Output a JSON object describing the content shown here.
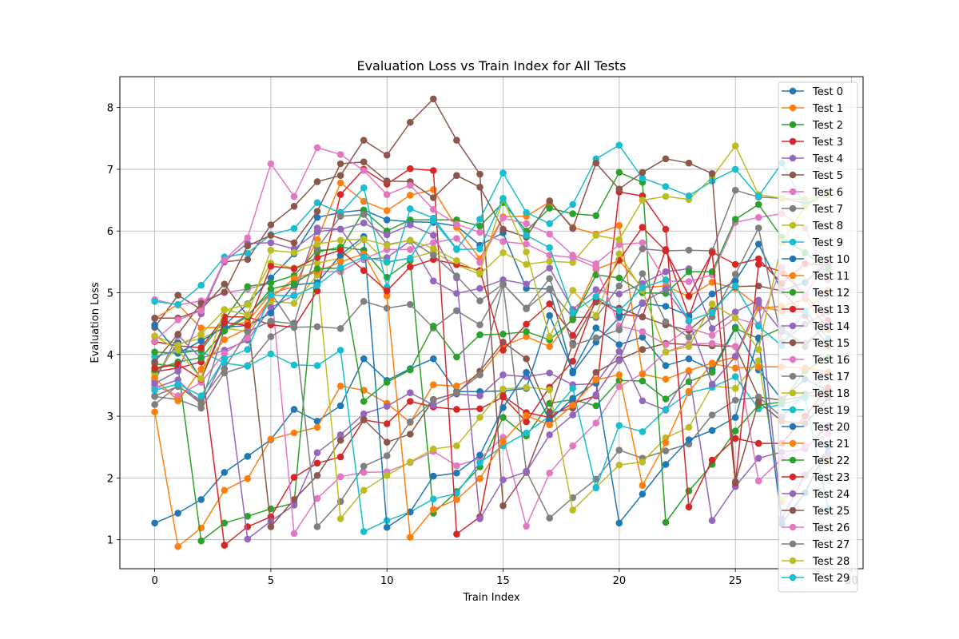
{
  "chart_data": {
    "type": "line",
    "title": "Evaluation Loss vs Train Index for All Tests",
    "xlabel": "Train Index",
    "ylabel": "Evaluation Loss",
    "xlim": [
      -1.5,
      30.5
    ],
    "ylim": [
      0.53,
      8.5
    ],
    "xticks": [
      0,
      5,
      10,
      15,
      20,
      25,
      30
    ],
    "yticks": [
      1,
      2,
      3,
      4,
      5,
      6,
      7,
      8
    ],
    "grid": true,
    "legend": "upper-right",
    "marker": "circle",
    "series": [
      {
        "name": "Test 0",
        "color": "#1f77b4",
        "values": [
          1.27,
          1.43,
          1.65,
          2.09,
          2.35,
          2.62,
          3.11,
          2.92,
          3.17,
          3.93,
          3.58,
          3.77,
          3.93,
          3.4,
          3.4,
          3.41,
          3.45,
          4.63,
          3.73,
          4.43,
          4.16,
          4.28,
          3.82,
          3.93,
          3.75,
          4.44,
          3.75,
          3.27,
          3.6,
          3.42
        ]
      },
      {
        "name": "Test 1",
        "color": "#ff7f0e",
        "values": [
          3.07,
          0.89,
          1.19,
          1.8,
          1.99,
          2.63,
          2.73,
          2.82,
          3.49,
          3.42,
          3.21,
          2.9,
          3.51,
          3.49,
          3.67,
          4.14,
          4.29,
          4.13,
          4.59,
          5.38,
          5.52,
          5.08,
          5.11,
          4.94,
          5.17,
          5.07,
          4.78,
          4.7,
          4.69,
          5.04
        ]
      },
      {
        "name": "Test 2",
        "color": "#2ca02c",
        "values": [
          3.85,
          3.8,
          0.98,
          1.27,
          1.38,
          1.5,
          1.59,
          5.66,
          5.74,
          5.69,
          5.25,
          5.52,
          1.43,
          1.78,
          2.18,
          2.98,
          2.68,
          3.21,
          3.27,
          3.17,
          3.58,
          3.57,
          3.28,
          3.56,
          3.71,
          4.42,
          4.26,
          4.43,
          4.13,
          4.55
        ]
      },
      {
        "name": "Test 3",
        "color": "#d62728",
        "values": [
          3.72,
          3.78,
          3.88,
          0.91,
          1.21,
          1.37,
          2.01,
          2.24,
          2.34,
          2.94,
          2.88,
          3.24,
          3.15,
          3.11,
          3.12,
          3.31,
          2.91,
          3.47,
          3.89,
          4.91,
          4.66,
          4.61,
          5.7,
          4.61,
          5.66,
          5.46,
          5.55,
          5.15,
          5.47,
          5.44
        ]
      },
      {
        "name": "Test 4",
        "color": "#9467bd",
        "values": [
          3.46,
          3.59,
          3.2,
          3.94,
          1.01,
          1.3,
          1.56,
          2.41,
          2.7,
          3.04,
          3.16,
          3.38,
          3.18,
          3.36,
          3.33,
          3.67,
          3.64,
          3.7,
          3.51,
          3.53,
          4.05,
          3.25,
          3.1,
          3.73,
          1.31,
          1.86,
          2.32,
          2.42,
          2.47,
          2.85
        ]
      },
      {
        "name": "Test 5",
        "color": "#8c564b",
        "values": [
          4.44,
          4.96,
          4.73,
          5.14,
          4.62,
          1.21,
          1.65,
          2.04,
          2.61,
          2.95,
          2.58,
          2.71,
          3.27,
          3.37,
          3.73,
          4.2,
          3.93,
          3.04,
          3.13,
          3.71,
          3.92,
          4.08,
          4.18,
          4.16,
          4.14,
          4.13,
          3.31,
          3.26,
          3.32,
          3.36
        ]
      },
      {
        "name": "Test 6",
        "color": "#e377c2",
        "values": [
          4.89,
          4.8,
          4.87,
          5.0,
          5.06,
          5.16,
          1.1,
          1.67,
          2.02,
          2.09,
          2.1,
          2.25,
          2.43,
          2.2,
          2.31,
          2.66,
          1.22,
          2.08,
          2.52,
          2.89,
          3.48,
          3.69,
          4.04,
          4.17,
          4.18,
          4.13,
          1.95,
          2.31,
          2.52,
          2.71
        ]
      },
      {
        "name": "Test 7",
        "color": "#7f7f7f",
        "values": [
          3.32,
          3.27,
          3.13,
          3.7,
          3.82,
          4.29,
          4.51,
          1.21,
          1.62,
          2.19,
          2.36,
          2.91,
          3.26,
          3.38,
          3.67,
          5.13,
          2.11,
          1.35,
          1.68,
          1.98,
          2.45,
          2.32,
          2.44,
          2.55,
          3.02,
          3.26,
          3.31,
          2.99,
          3.36,
          3.45
        ]
      },
      {
        "name": "Test 8",
        "color": "#bcbd22",
        "values": [
          4.29,
          4.17,
          4.26,
          4.43,
          4.37,
          4.86,
          4.83,
          5.29,
          1.34,
          1.8,
          2.04,
          2.26,
          2.47,
          2.52,
          2.98,
          3.44,
          3.47,
          3.43,
          1.48,
          1.85,
          2.21,
          2.26,
          2.65,
          2.82,
          3.49,
          3.45,
          3.9,
          1.62,
          2.03,
          2.27
        ]
      },
      {
        "name": "Test 9",
        "color": "#17becf",
        "values": [
          3.96,
          4.07,
          4.05,
          3.86,
          3.81,
          4.01,
          3.83,
          3.82,
          4.07,
          1.13,
          1.31,
          1.45,
          1.66,
          1.75,
          2.25,
          2.52,
          2.73,
          3.0,
          3.45,
          1.84,
          2.85,
          2.75,
          3.11,
          3.38,
          3.47,
          3.64,
          3.12,
          3.19,
          3.3,
          1.5
        ]
      },
      {
        "name": "Test 10",
        "color": "#1f77b4",
        "values": [
          3.62,
          4.19,
          3.6,
          4.47,
          4.82,
          5.24,
          5.63,
          6.22,
          6.3,
          6.34,
          6.18,
          6.15,
          6.14,
          6.08,
          5.77,
          5.97,
          5.07,
          5.06,
          3.7,
          4.2,
          4.6,
          4.83,
          4.78,
          4.63,
          4.98,
          5.19,
          5.79,
          5.03,
          5.17,
          5.5
        ]
      },
      {
        "name": "Test 11",
        "color": "#ff7f0e",
        "values": [
          4.58,
          4.81,
          4.43,
          4.44,
          4.53,
          4.99,
          5.1,
          5.86,
          6.78,
          6.48,
          6.33,
          6.58,
          6.67,
          6.06,
          5.55,
          6.23,
          6.24,
          6.47,
          6.06,
          5.95,
          6.09,
          3.68,
          3.6,
          3.74,
          3.86,
          3.96,
          4.75,
          4.78,
          4.9,
          4.4
        ]
      },
      {
        "name": "Test 12",
        "color": "#2ca02c",
        "values": [
          4.04,
          4.02,
          4.07,
          4.56,
          5.1,
          5.16,
          5.28,
          5.69,
          5.7,
          6.33,
          6.0,
          6.18,
          6.18,
          6.18,
          6.08,
          6.46,
          6.0,
          6.37,
          6.28,
          6.25,
          6.95,
          6.79,
          1.28,
          1.79,
          2.22,
          2.76,
          3.18,
          3.23,
          3.74,
          3.95
        ]
      },
      {
        "name": "Test 13",
        "color": "#d62728",
        "values": [
          4.21,
          4.14,
          4.11,
          4.61,
          4.61,
          4.48,
          4.44,
          5.03,
          6.59,
          7.0,
          6.76,
          7.01,
          6.98,
          1.09,
          1.37,
          3.33,
          3.06,
          2.98,
          3.21,
          3.33,
          6.63,
          6.57,
          6.03,
          1.53,
          2.29,
          2.64,
          2.56,
          2.56,
          3.0,
          3.46
        ]
      },
      {
        "name": "Test 14",
        "color": "#9467bd",
        "values": [
          3.57,
          4.31,
          3.94,
          4.07,
          4.23,
          4.76,
          4.96,
          6.05,
          6.03,
          5.54,
          5.57,
          5.84,
          5.19,
          4.99,
          5.07,
          5.21,
          5.14,
          5.4,
          4.73,
          5.05,
          4.98,
          5.15,
          5.34,
          5.39,
          4.42,
          4.69,
          4.88,
          1.34,
          2.05,
          2.4
        ]
      },
      {
        "name": "Test 15",
        "color": "#8c564b",
        "values": [
          4.59,
          4.59,
          4.72,
          5.5,
          5.54,
          6.1,
          6.4,
          6.8,
          6.9,
          7.47,
          7.23,
          7.76,
          8.14,
          7.47,
          6.92,
          1.55,
          2.09,
          3.07,
          4.18,
          4.85,
          4.75,
          4.61,
          4.48,
          4.39,
          4.71,
          5.1,
          5.11,
          5.03,
          4.63,
          4.14
        ]
      },
      {
        "name": "Test 16",
        "color": "#e377c2",
        "values": [
          3.5,
          3.33,
          3.55,
          4.02,
          4.27,
          4.94,
          5.18,
          5.35,
          5.34,
          5.55,
          5.7,
          5.7,
          5.81,
          5.88,
          5.49,
          6.21,
          6.12,
          5.95,
          5.61,
          5.47,
          5.78,
          5.81,
          5.19,
          5.18,
          5.29,
          6.14,
          6.22,
          6.28,
          6.05,
          5.21
        ]
      },
      {
        "name": "Test 17",
        "color": "#7f7f7f",
        "values": [
          3.19,
          3.5,
          3.2,
          4.41,
          4.64,
          5.0,
          4.44,
          4.45,
          4.42,
          4.86,
          4.75,
          4.81,
          4.43,
          4.71,
          4.48,
          5.14,
          4.74,
          5.05,
          4.6,
          4.6,
          5.11,
          5.71,
          5.68,
          5.69,
          5.68,
          6.66,
          6.55,
          6.53,
          6.45,
          6.59
        ]
      },
      {
        "name": "Test 18",
        "color": "#bcbd22",
        "values": [
          3.68,
          4.15,
          4.33,
          4.72,
          4.81,
          5.48,
          5.4,
          5.48,
          5.56,
          5.86,
          5.49,
          5.56,
          5.66,
          5.45,
          5.3,
          5.65,
          5.46,
          5.51,
          5.49,
          5.93,
          5.86,
          6.5,
          6.56,
          6.51,
          6.87,
          7.38,
          6.59,
          6.53,
          6.51,
          6.59
        ]
      },
      {
        "name": "Test 19",
        "color": "#17becf",
        "values": [
          4.86,
          4.81,
          5.12,
          5.58,
          5.64,
          5.94,
          6.04,
          6.46,
          6.29,
          6.7,
          5.09,
          6.36,
          6.21,
          5.71,
          6.19,
          6.94,
          6.3,
          6.12,
          6.43,
          7.17,
          7.39,
          6.86,
          6.72,
          6.57,
          6.81,
          7.0,
          6.56,
          7.1,
          6.42,
          6.64
        ]
      },
      {
        "name": "Test 20",
        "color": "#1f77b4",
        "values": [
          4.48,
          4.02,
          4.22,
          4.44,
          4.47,
          4.67,
          5.13,
          5.16,
          5.61,
          5.91,
          1.2,
          1.45,
          2.03,
          2.08,
          2.37,
          3.14,
          3.71,
          2.93,
          3.29,
          3.55,
          1.27,
          1.74,
          2.22,
          2.62,
          2.77,
          2.98,
          4.27,
          1.26,
          1.76,
          2.51
        ]
      },
      {
        "name": "Test 21",
        "color": "#ff7f0e",
        "values": [
          3.62,
          3.25,
          3.76,
          4.24,
          4.42,
          4.92,
          5.23,
          5.34,
          5.5,
          5.63,
          4.95,
          1.04,
          1.49,
          1.65,
          1.99,
          2.59,
          3.01,
          2.86,
          3.18,
          3.59,
          3.67,
          1.88,
          2.57,
          3.4,
          3.85,
          3.78,
          3.8,
          3.8,
          3.78,
          3.72
        ]
      },
      {
        "name": "Test 22",
        "color": "#2ca02c",
        "values": [
          3.75,
          3.88,
          3.95,
          4.38,
          4.62,
          5.06,
          5.15,
          5.39,
          5.4,
          3.24,
          3.55,
          3.75,
          4.46,
          3.96,
          4.32,
          4.33,
          4.37,
          4.24,
          4.56,
          5.29,
          5.24,
          5.0,
          4.99,
          5.34,
          5.34,
          6.19,
          6.43,
          5.9,
          5.65,
          5.39
        ]
      },
      {
        "name": "Test 23",
        "color": "#d62728",
        "values": [
          3.78,
          3.84,
          3.6,
          4.52,
          4.47,
          5.43,
          5.39,
          5.57,
          5.69,
          5.36,
          5.03,
          5.42,
          5.54,
          5.46,
          5.36,
          4.07,
          4.49,
          4.82,
          4.31,
          4.91,
          5.53,
          6.06,
          5.68,
          4.95,
          5.65,
          1.92,
          5.46,
          5.34,
          4.96,
          4.55
        ]
      },
      {
        "name": "Test 24",
        "color": "#9467bd",
        "values": [
          3.53,
          3.73,
          4.66,
          5.51,
          5.8,
          5.81,
          5.71,
          5.99,
          6.03,
          6.13,
          5.94,
          6.1,
          5.93,
          5.24,
          1.34,
          1.97,
          2.1,
          2.7,
          3.02,
          3.35,
          3.9,
          4.84,
          5.06,
          4.54,
          3.52,
          3.97,
          4.84,
          4.37,
          4.18,
          4.47
        ]
      },
      {
        "name": "Test 25",
        "color": "#8c564b",
        "values": [
          3.88,
          4.33,
          4.83,
          5.01,
          5.76,
          5.93,
          5.81,
          6.32,
          7.09,
          7.12,
          6.81,
          6.8,
          6.54,
          6.9,
          6.71,
          6.03,
          5.9,
          6.49,
          6.04,
          7.1,
          6.68,
          6.95,
          7.17,
          7.1,
          6.93,
          1.94,
          3.23,
          2.92,
          2.88,
          3.3
        ]
      },
      {
        "name": "Test 26",
        "color": "#e377c2",
        "values": [
          4.22,
          4.56,
          4.71,
          5.53,
          5.89,
          7.09,
          6.56,
          7.35,
          7.24,
          6.98,
          6.59,
          6.74,
          6.35,
          6.11,
          5.98,
          5.83,
          5.79,
          5.61,
          5.57,
          5.41,
          4.46,
          4.37,
          4.16,
          4.43,
          4.31,
          4.59,
          4.48,
          5.41,
          4.96,
          5.53
        ]
      },
      {
        "name": "Test 27",
        "color": "#7f7f7f",
        "values": [
          3.33,
          3.48,
          3.26,
          3.77,
          4.37,
          4.54,
          4.5,
          5.72,
          6.24,
          6.27,
          5.78,
          5.85,
          5.61,
          5.27,
          4.87,
          5.14,
          4.75,
          5.23,
          4.15,
          4.27,
          4.4,
          5.31,
          4.53,
          4.28,
          4.61,
          5.3,
          6.05,
          4.2,
          4.49,
          4.69
        ]
      },
      {
        "name": "Test 28",
        "color": "#bcbd22",
        "values": [
          4.3,
          4.07,
          3.61,
          4.73,
          4.64,
          5.69,
          5.65,
          5.79,
          5.85,
          5.87,
          5.77,
          5.85,
          5.72,
          5.52,
          5.33,
          6.52,
          5.66,
          4.29,
          5.04,
          4.63,
          5.63,
          5.04,
          4.04,
          4.13,
          4.82,
          4.59,
          4.08,
          5.82,
          6.39,
          6.63
        ]
      },
      {
        "name": "Test 29",
        "color": "#17becf",
        "values": [
          3.42,
          3.52,
          3.33,
          3.93,
          4.08,
          4.96,
          4.95,
          5.12,
          5.41,
          5.58,
          5.5,
          5.56,
          6.17,
          5.7,
          5.71,
          6.53,
          5.93,
          5.73,
          4.68,
          4.94,
          4.71,
          5.08,
          5.21,
          4.55,
          4.68,
          5.11,
          4.46,
          4.14,
          4.71,
          4.26
        ]
      }
    ]
  }
}
